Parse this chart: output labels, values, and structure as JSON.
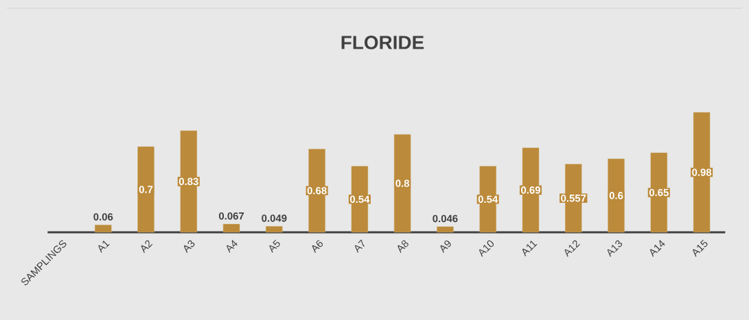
{
  "chart_data": {
    "type": "bar",
    "title": "FLORIDE",
    "categories": [
      "SAMPLINGS",
      "A1",
      "A2",
      "A3",
      "A4",
      "A5",
      "A6",
      "A7",
      "A8",
      "A9",
      "A10",
      "A11",
      "A12",
      "A13",
      "A14",
      "A15"
    ],
    "values": [
      null,
      0.06,
      0.7,
      0.83,
      0.067,
      0.049,
      0.68,
      0.54,
      0.8,
      0.046,
      0.54,
      0.69,
      0.557,
      0.6,
      0.65,
      0.98
    ],
    "color": "#bb8a3a",
    "data_labels": true
  }
}
